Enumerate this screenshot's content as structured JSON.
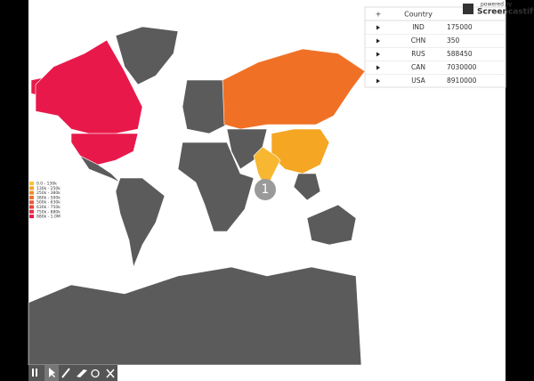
{
  "table": {
    "header": [
      "+",
      "Country"
    ],
    "rows": [
      [
        "IND",
        "175000"
      ],
      [
        "CHN",
        "350"
      ],
      [
        "RUS",
        "588450"
      ],
      [
        "CAN",
        "7030000"
      ],
      [
        "USA",
        "8910000"
      ]
    ]
  },
  "legend": [
    "0.0 - 130k",
    "130k - 250k",
    "250k - 380k",
    "380k - 500k",
    "500k - 630k",
    "630k - 750k",
    "750k - 880k",
    "880k - 1.0M"
  ],
  "marker": "1",
  "watermark": {
    "small": "powered by",
    "brand": "Screencastify"
  }
}
